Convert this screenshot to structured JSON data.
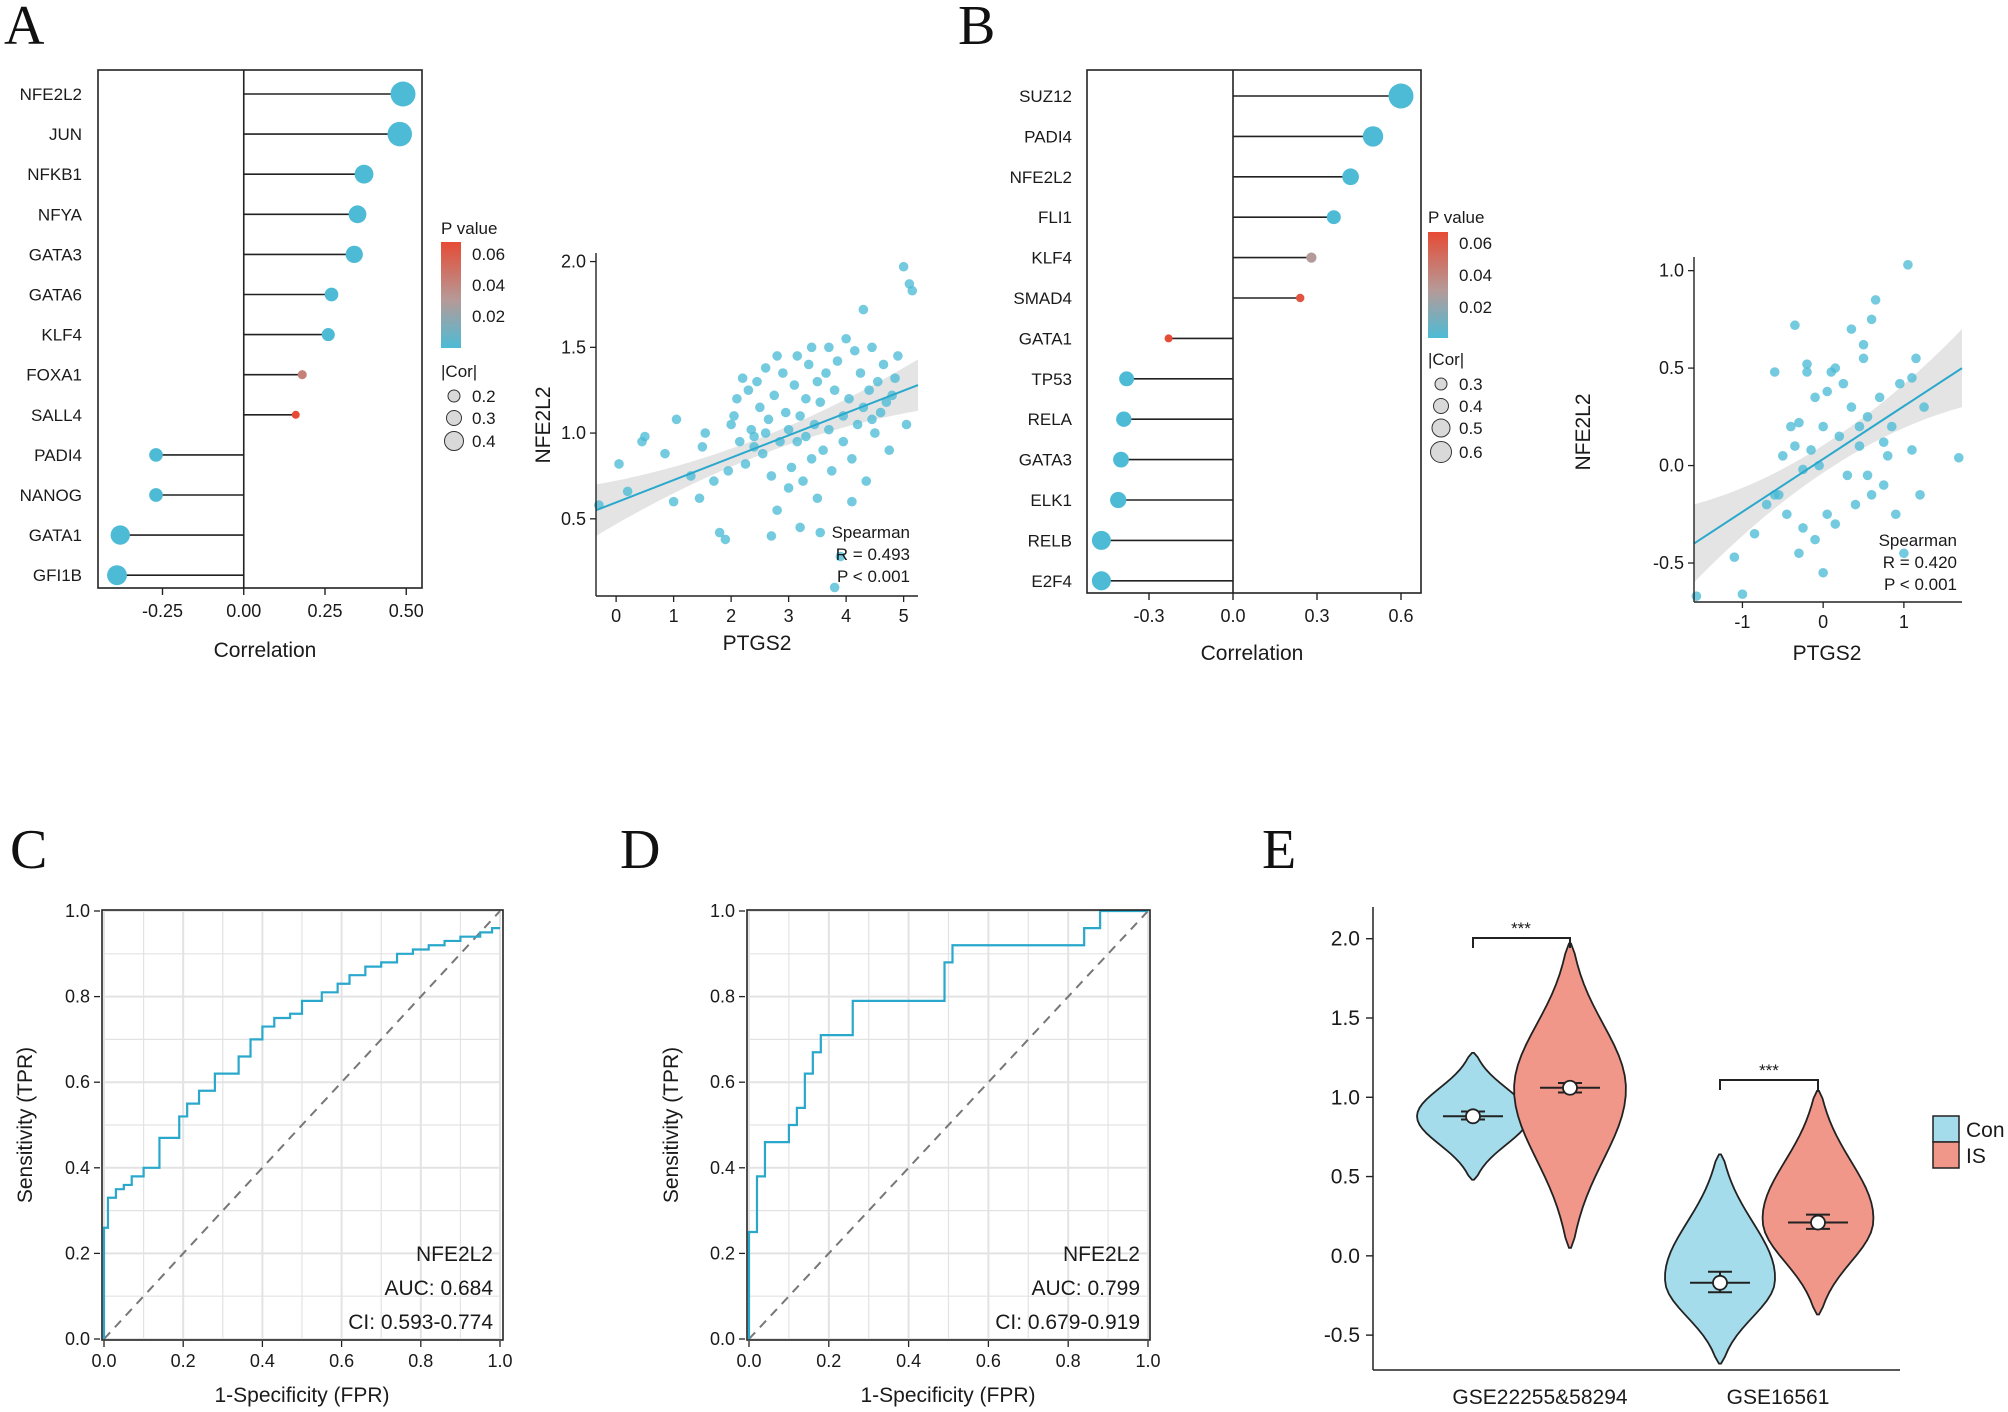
{
  "colors": {
    "blue": "#4DBBD5",
    "red": "#E64B35",
    "roc": "#2AA8CC",
    "con": "#A5DCEB",
    "is": "#F0978A"
  },
  "chart_data": [
    {
      "id": "A",
      "type": "lollipop",
      "panel_label": "A",
      "xlabel": "Correlation",
      "xlim": [
        -0.43,
        0.53
      ],
      "xticks": [
        -0.25,
        0.0,
        0.25,
        0.5
      ],
      "tick_labels": [
        "-0.25",
        "0.00",
        "0.25",
        "0.50"
      ],
      "genes": [
        "NFE2L2",
        "JUN",
        "NFKB1",
        "NFYA",
        "GATA3",
        "GATA6",
        "KLF4",
        "FOXA1",
        "SALL4",
        "PADI4",
        "NANOG",
        "GATA1",
        "GFI1B"
      ],
      "values": [
        0.49,
        0.48,
        0.37,
        0.35,
        0.34,
        0.27,
        0.26,
        0.18,
        0.16,
        -0.27,
        -0.27,
        -0.38,
        -0.39
      ],
      "pvalues": [
        0.0,
        0.0,
        0.0,
        0.0,
        0.0,
        0.0,
        0.0,
        0.045,
        0.065,
        0.0,
        0.0,
        0.0,
        0.0
      ],
      "legend": {
        "p_title": "P value",
        "p_ticks": [
          "0.06",
          "0.04",
          "0.02"
        ],
        "size_title": "|Cor|",
        "size_ticks": [
          "0.2",
          "0.3",
          "0.4"
        ]
      }
    },
    {
      "id": "A2",
      "type": "scatter",
      "xlabel": "PTGS2",
      "ylabel": "NFE2L2",
      "xlim": [
        -0.35,
        5.25
      ],
      "ylim": [
        0.05,
        2.05
      ],
      "xticks": [
        0,
        1,
        2,
        3,
        4,
        5
      ],
      "yticks": [
        0.5,
        1.0,
        1.5,
        2.0
      ],
      "tick_labels_x": [
        "0",
        "1",
        "2",
        "3",
        "4",
        "5"
      ],
      "tick_labels_y": [
        "0.5",
        "1.0",
        "1.5",
        "2.0"
      ],
      "fit": {
        "x0": -0.35,
        "y0": 0.55,
        "x1": 5.25,
        "y1": 1.28
      },
      "annotation": {
        "method": "Spearman",
        "r_label": "R = 0.493",
        "p_label": "P < 0.001"
      },
      "points": [
        [
          -0.3,
          0.58
        ],
        [
          0.05,
          0.82
        ],
        [
          0.2,
          0.66
        ],
        [
          0.45,
          0.95
        ],
        [
          0.5,
          0.98
        ],
        [
          0.85,
          0.88
        ],
        [
          1.0,
          0.6
        ],
        [
          1.05,
          1.08
        ],
        [
          1.3,
          0.75
        ],
        [
          1.45,
          0.62
        ],
        [
          1.5,
          0.92
        ],
        [
          1.55,
          1.0
        ],
        [
          1.8,
          0.42
        ],
        [
          1.9,
          0.38
        ],
        [
          1.95,
          0.78
        ],
        [
          2.0,
          1.05
        ],
        [
          2.05,
          1.1
        ],
        [
          2.1,
          1.2
        ],
        [
          2.15,
          0.95
        ],
        [
          2.2,
          1.32
        ],
        [
          2.25,
          0.82
        ],
        [
          2.3,
          1.25
        ],
        [
          2.35,
          1.02
        ],
        [
          2.4,
          0.92
        ],
        [
          2.45,
          1.3
        ],
        [
          2.5,
          1.15
        ],
        [
          2.55,
          0.88
        ],
        [
          2.6,
          1.0
        ],
        [
          2.6,
          1.38
        ],
        [
          2.65,
          1.08
        ],
        [
          2.7,
          0.75
        ],
        [
          2.75,
          1.22
        ],
        [
          2.8,
          0.55
        ],
        [
          2.85,
          0.95
        ],
        [
          2.9,
          1.35
        ],
        [
          2.95,
          1.12
        ],
        [
          3.0,
          0.68
        ],
        [
          3.0,
          1.02
        ],
        [
          3.05,
          0.8
        ],
        [
          3.1,
          1.28
        ],
        [
          3.15,
          0.95
        ],
        [
          3.15,
          1.45
        ],
        [
          3.2,
          1.1
        ],
        [
          3.25,
          0.72
        ],
        [
          3.3,
          1.2
        ],
        [
          3.3,
          0.98
        ],
        [
          3.35,
          1.4
        ],
        [
          3.4,
          0.85
        ],
        [
          3.45,
          1.05
        ],
        [
          3.5,
          1.3
        ],
        [
          3.5,
          0.62
        ],
        [
          3.55,
          1.18
        ],
        [
          3.6,
          0.9
        ],
        [
          3.65,
          1.35
        ],
        [
          3.7,
          1.5
        ],
        [
          3.7,
          1.02
        ],
        [
          3.75,
          0.78
        ],
        [
          3.8,
          1.25
        ],
        [
          3.85,
          1.42
        ],
        [
          3.9,
          0.28
        ],
        [
          3.95,
          1.1
        ],
        [
          3.95,
          0.95
        ],
        [
          4.0,
          1.55
        ],
        [
          4.05,
          1.2
        ],
        [
          4.1,
          0.85
        ],
        [
          4.15,
          1.48
        ],
        [
          4.2,
          1.05
        ],
        [
          4.25,
          1.35
        ],
        [
          4.3,
          1.72
        ],
        [
          4.3,
          1.15
        ],
        [
          4.35,
          0.72
        ],
        [
          4.4,
          1.25
        ],
        [
          4.45,
          1.5
        ],
        [
          4.5,
          1.0
        ],
        [
          4.55,
          1.3
        ],
        [
          4.6,
          1.12
        ],
        [
          4.65,
          1.4
        ],
        [
          4.7,
          1.18
        ],
        [
          4.75,
          0.9
        ],
        [
          4.8,
          1.22
        ],
        [
          4.85,
          1.32
        ],
        [
          4.9,
          1.45
        ],
        [
          5.0,
          1.97
        ],
        [
          5.05,
          1.05
        ],
        [
          5.1,
          1.87
        ],
        [
          5.15,
          1.83
        ],
        [
          3.55,
          0.42
        ],
        [
          4.1,
          0.6
        ],
        [
          3.2,
          0.45
        ],
        [
          2.7,
          0.4
        ],
        [
          3.8,
          0.1
        ],
        [
          2.4,
          0.98
        ],
        [
          1.7,
          0.72
        ],
        [
          2.8,
          1.45
        ],
        [
          3.4,
          1.5
        ],
        [
          4.45,
          1.08
        ]
      ]
    },
    {
      "id": "B",
      "type": "lollipop",
      "panel_label": "B",
      "xlabel": "Correlation",
      "xlim": [
        -0.5,
        0.65
      ],
      "xticks": [
        -0.3,
        0.0,
        0.3,
        0.6
      ],
      "tick_labels": [
        "-0.3",
        "0.0",
        "0.3",
        "0.6"
      ],
      "genes": [
        "SUZ12",
        "PADI4",
        "NFE2L2",
        "FLI1",
        "KLF4",
        "SMAD4",
        "GATA1",
        "TP53",
        "RELA",
        "GATA3",
        "ELK1",
        "RELB",
        "E2F4"
      ],
      "values": [
        0.6,
        0.5,
        0.42,
        0.36,
        0.28,
        0.24,
        -0.23,
        -0.38,
        -0.39,
        -0.4,
        -0.41,
        -0.47,
        -0.47
      ],
      "pvalues": [
        0.0,
        0.0,
        0.0,
        0.0,
        0.035,
        0.06,
        0.065,
        0.0,
        0.0,
        0.0,
        0.0,
        0.0,
        0.0
      ],
      "legend": {
        "p_title": "P value",
        "p_ticks": [
          "0.06",
          "0.04",
          "0.02"
        ],
        "size_title": "|Cor|",
        "size_ticks": [
          "0.3",
          "0.4",
          "0.5",
          "0.6"
        ]
      }
    },
    {
      "id": "B2",
      "type": "scatter",
      "xlabel": "PTGS2",
      "ylabel": "NFE2L2",
      "xlim": [
        -1.6,
        1.72
      ],
      "ylim": [
        -0.7,
        1.07
      ],
      "xticks": [
        -1,
        0,
        1
      ],
      "yticks": [
        -0.5,
        0.0,
        0.5,
        1.0
      ],
      "tick_labels_x": [
        "-1",
        "0",
        "1"
      ],
      "tick_labels_y": [
        "-0.5",
        "0.0",
        "0.5",
        "1.0"
      ],
      "fit": {
        "x0": -1.6,
        "y0": -0.4,
        "x1": 1.72,
        "y1": 0.5
      },
      "annotation": {
        "method": "Spearman",
        "r_label": "R = 0.420",
        "p_label": "P < 0.001"
      },
      "points": [
        [
          -1.57,
          -0.67
        ],
        [
          -1.1,
          -0.47
        ],
        [
          -1.0,
          -0.66
        ],
        [
          -0.85,
          -0.35
        ],
        [
          -0.7,
          -0.2
        ],
        [
          -0.6,
          0.48
        ],
        [
          -0.55,
          -0.15
        ],
        [
          -0.5,
          0.05
        ],
        [
          -0.45,
          -0.25
        ],
        [
          -0.4,
          0.2
        ],
        [
          -0.35,
          0.1
        ],
        [
          -0.3,
          0.22
        ],
        [
          -0.3,
          -0.45
        ],
        [
          -0.25,
          -0.32
        ],
        [
          -0.2,
          0.52
        ],
        [
          -0.2,
          0.48
        ],
        [
          -0.15,
          0.08
        ],
        [
          -0.1,
          -0.38
        ],
        [
          -0.1,
          0.35
        ],
        [
          -0.05,
          0.0
        ],
        [
          0.0,
          0.2
        ],
        [
          0.0,
          -0.55
        ],
        [
          0.05,
          -0.25
        ],
        [
          0.1,
          0.48
        ],
        [
          0.15,
          -0.3
        ],
        [
          0.2,
          0.15
        ],
        [
          0.25,
          0.42
        ],
        [
          0.3,
          -0.05
        ],
        [
          0.35,
          0.7
        ],
        [
          0.35,
          0.3
        ],
        [
          0.4,
          -0.2
        ],
        [
          0.45,
          0.1
        ],
        [
          0.5,
          0.55
        ],
        [
          0.5,
          0.62
        ],
        [
          0.55,
          0.25
        ],
        [
          0.6,
          0.75
        ],
        [
          0.6,
          -0.15
        ],
        [
          0.65,
          0.85
        ],
        [
          0.7,
          0.35
        ],
        [
          0.75,
          -0.1
        ],
        [
          0.8,
          0.05
        ],
        [
          0.85,
          0.2
        ],
        [
          0.9,
          -0.25
        ],
        [
          0.95,
          0.42
        ],
        [
          1.0,
          -0.45
        ],
        [
          1.05,
          1.03
        ],
        [
          1.1,
          0.08
        ],
        [
          1.15,
          0.55
        ],
        [
          1.2,
          -0.15
        ],
        [
          1.25,
          0.3
        ],
        [
          1.68,
          0.04
        ],
        [
          -0.35,
          0.72
        ],
        [
          0.45,
          0.2
        ],
        [
          -0.6,
          -0.15
        ],
        [
          0.15,
          0.5
        ],
        [
          0.75,
          0.12
        ],
        [
          -0.25,
          -0.02
        ],
        [
          0.05,
          0.38
        ],
        [
          0.55,
          -0.05
        ],
        [
          1.1,
          0.45
        ]
      ]
    },
    {
      "id": "C",
      "type": "line",
      "panel_label": "C",
      "subtype": "roc",
      "xlabel": "1-Specificity (FPR)",
      "ylabel": "Sensitivity (TPR)",
      "xlim": [
        0,
        1
      ],
      "ylim": [
        0,
        1
      ],
      "ticks": [
        0.0,
        0.2,
        0.4,
        0.6,
        0.8,
        1.0
      ],
      "tick_labels": [
        "0.0",
        "0.2",
        "0.4",
        "0.6",
        "0.8",
        "1.0"
      ],
      "gene": "NFE2L2",
      "auc_label": "AUC: 0.684",
      "ci_label": "CI: 0.593-0.774",
      "x": [
        0,
        0,
        0.01,
        0.01,
        0.03,
        0.03,
        0.05,
        0.05,
        0.07,
        0.07,
        0.1,
        0.1,
        0.14,
        0.14,
        0.19,
        0.19,
        0.21,
        0.21,
        0.24,
        0.24,
        0.28,
        0.28,
        0.34,
        0.34,
        0.37,
        0.37,
        0.4,
        0.4,
        0.43,
        0.43,
        0.47,
        0.47,
        0.5,
        0.5,
        0.55,
        0.55,
        0.59,
        0.59,
        0.62,
        0.62,
        0.66,
        0.66,
        0.7,
        0.7,
        0.74,
        0.74,
        0.78,
        0.78,
        0.82,
        0.82,
        0.86,
        0.86,
        0.9,
        0.9,
        0.95,
        0.95,
        0.98,
        0.98,
        1.0
      ],
      "y": [
        0,
        0.26,
        0.26,
        0.33,
        0.33,
        0.35,
        0.35,
        0.36,
        0.36,
        0.38,
        0.38,
        0.4,
        0.4,
        0.47,
        0.47,
        0.52,
        0.52,
        0.55,
        0.55,
        0.58,
        0.58,
        0.62,
        0.62,
        0.66,
        0.66,
        0.7,
        0.7,
        0.73,
        0.73,
        0.75,
        0.75,
        0.76,
        0.76,
        0.79,
        0.79,
        0.81,
        0.81,
        0.83,
        0.83,
        0.85,
        0.85,
        0.87,
        0.87,
        0.88,
        0.88,
        0.9,
        0.9,
        0.91,
        0.91,
        0.92,
        0.92,
        0.93,
        0.93,
        0.94,
        0.94,
        0.95,
        0.95,
        0.96,
        0.96
      ]
    },
    {
      "id": "D",
      "type": "line",
      "panel_label": "D",
      "subtype": "roc",
      "xlabel": "1-Specificity (FPR)",
      "ylabel": "Sensitivity (TPR)",
      "xlim": [
        0,
        1
      ],
      "ylim": [
        0,
        1
      ],
      "ticks": [
        0.0,
        0.2,
        0.4,
        0.6,
        0.8,
        1.0
      ],
      "tick_labels": [
        "0.0",
        "0.2",
        "0.4",
        "0.6",
        "0.8",
        "1.0"
      ],
      "gene": "NFE2L2",
      "auc_label": "AUC: 0.799",
      "ci_label": "CI: 0.679-0.919",
      "x": [
        0,
        0,
        0.02,
        0.02,
        0.04,
        0.04,
        0.06,
        0.06,
        0.08,
        0.08,
        0.1,
        0.1,
        0.12,
        0.12,
        0.14,
        0.14,
        0.16,
        0.16,
        0.18,
        0.18,
        0.2,
        0.2,
        0.26,
        0.26,
        0.49,
        0.49,
        0.51,
        0.51,
        0.84,
        0.84,
        0.88,
        0.88,
        1.0
      ],
      "y": [
        0,
        0.25,
        0.25,
        0.38,
        0.38,
        0.46,
        0.46,
        0.46,
        0.46,
        0.46,
        0.46,
        0.5,
        0.5,
        0.54,
        0.54,
        0.62,
        0.62,
        0.67,
        0.67,
        0.71,
        0.71,
        0.71,
        0.71,
        0.79,
        0.79,
        0.88,
        0.88,
        0.92,
        0.92,
        0.96,
        0.96,
        1.0,
        1.0
      ]
    },
    {
      "id": "E",
      "type": "violin",
      "panel_label": "E",
      "categories": [
        "GSE22255&58294",
        "GSE16561"
      ],
      "ylim": [
        -0.72,
        2.2
      ],
      "yticks": [
        -0.5,
        0.0,
        0.5,
        1.0,
        1.5,
        2.0
      ],
      "tick_labels_y": [
        "-0.5",
        "0.0",
        "0.5",
        "1.0",
        "1.5",
        "2.0"
      ],
      "legend": [
        "Con",
        "IS"
      ],
      "significance": [
        "***",
        "***"
      ],
      "groups": [
        {
          "category": "GSE22255&58294",
          "group": "Con",
          "mean": 0.88,
          "lo": 0.86,
          "hi": 0.91,
          "min": 0.48,
          "max": 1.28
        },
        {
          "category": "GSE22255&58294",
          "group": "IS",
          "mean": 1.06,
          "lo": 1.03,
          "hi": 1.09,
          "min": 0.05,
          "max": 1.97
        },
        {
          "category": "GSE16561",
          "group": "Con",
          "mean": -0.17,
          "lo": -0.23,
          "hi": -0.1,
          "min": -0.68,
          "max": 0.64
        },
        {
          "category": "GSE16561",
          "group": "IS",
          "mean": 0.21,
          "lo": 0.17,
          "hi": 0.26,
          "min": -0.37,
          "max": 1.04
        }
      ]
    }
  ]
}
